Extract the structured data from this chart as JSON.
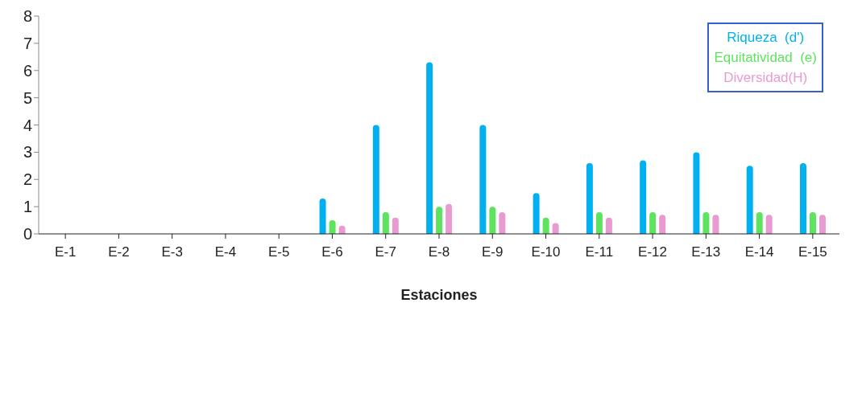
{
  "chart_data": {
    "type": "bar",
    "xlabel": "Estaciones",
    "categories": [
      "E-1",
      "E-2",
      "E-3",
      "E-4",
      "E-5",
      "E-6",
      "E-7",
      "E-8",
      "E-9",
      "E-10",
      "E-11",
      "E-12",
      "E-13",
      "E-14",
      "E-15"
    ],
    "series": [
      {
        "name": "Riqueza  (d')",
        "color": "#00b0f0",
        "values": [
          0,
          0,
          0,
          0,
          0,
          1.3,
          4.0,
          6.3,
          4.0,
          1.5,
          2.6,
          2.7,
          3.0,
          2.5,
          2.6
        ]
      },
      {
        "name": "Equitatividad  (e)",
        "color": "#5de35d",
        "values": [
          0,
          0,
          0,
          0,
          0,
          0.5,
          0.8,
          1.0,
          1.0,
          0.6,
          0.8,
          0.8,
          0.8,
          0.8,
          0.8
        ]
      },
      {
        "name": "Diversidad(H)",
        "color": "#e99ad0",
        "values": [
          0,
          0,
          0,
          0,
          0,
          0.3,
          0.6,
          1.1,
          0.8,
          0.4,
          0.6,
          0.7,
          0.7,
          0.7,
          0.7
        ]
      }
    ],
    "ylim": [
      0,
      8
    ],
    "yticks": [
      0,
      1,
      2,
      3,
      4,
      5,
      6,
      7,
      8
    ],
    "grid": false,
    "legend": "top right"
  }
}
